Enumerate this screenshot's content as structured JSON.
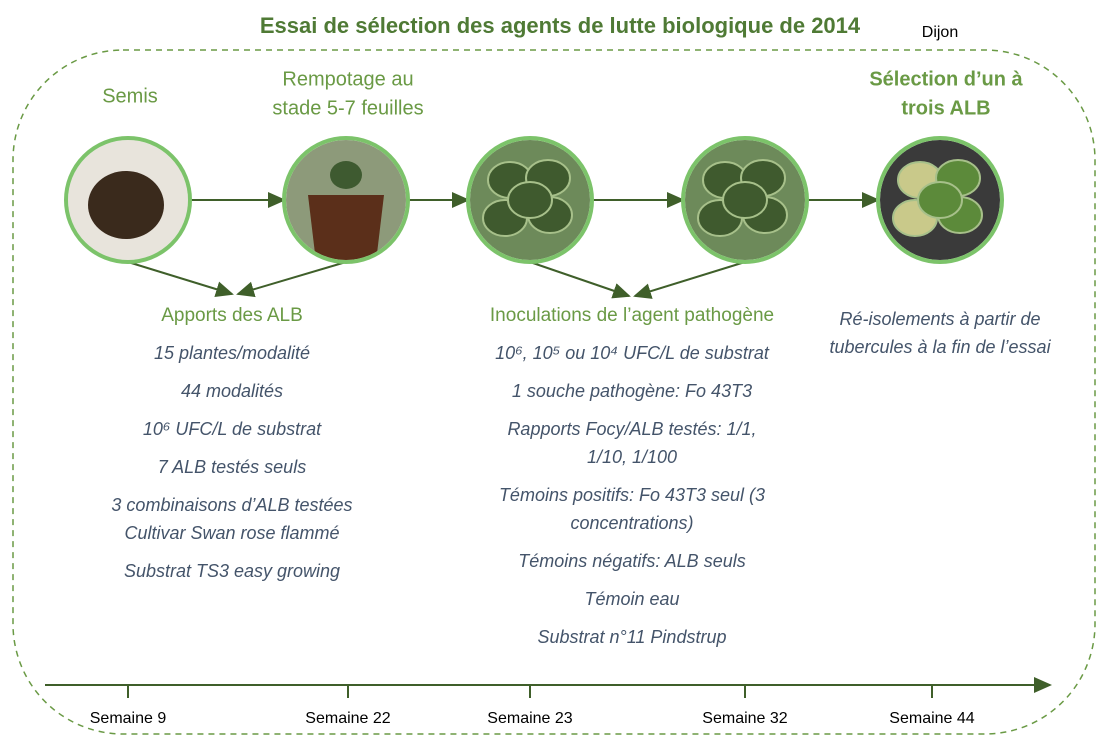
{
  "title": "Essai de sélection des agents de lutte biologique de 2014",
  "location": "Dijon",
  "stages": [
    {
      "lines": [
        "Semis"
      ]
    },
    {
      "lines": [
        "Rempotage au",
        "stade 5-7 feuilles"
      ]
    },
    {
      "lines": []
    },
    {
      "lines": []
    },
    {
      "lines": [
        "Sélection d’un à",
        "trois ALB"
      ]
    }
  ],
  "groups": [
    {
      "heading": "Apports des ALB",
      "items": [
        [
          "15 plantes/modalité"
        ],
        [
          "44 modalités"
        ],
        [
          "10⁶ UFC/L de substrat"
        ],
        [
          "7 ALB testés seuls"
        ],
        [
          "3 combinaisons d’ALB testées",
          "Cultivar Swan rose flammé"
        ],
        [
          "Substrat TS3 easy growing"
        ]
      ]
    },
    {
      "heading": "Inoculations de l’agent pathogène",
      "items": [
        [
          "10⁶, 10⁵ ou 10⁴ UFC/L de substrat"
        ],
        [
          "1 souche pathogène: Fo 43T3"
        ],
        [
          "Rapports Focy/ALB testés: 1/1,",
          "1/10, 1/100"
        ],
        [
          "Témoins positifs: Fo 43T3 seul (3",
          "concentrations)"
        ],
        [
          "Témoins négatifs: ALB seuls"
        ],
        [
          "Témoin eau"
        ],
        [
          "Substrat n°11 Pindstrup"
        ]
      ]
    },
    {
      "heading": null,
      "items": [
        [
          "Ré-isolements à partir de",
          "tubercules à la fin de l’essai"
        ]
      ]
    }
  ],
  "timeline": [
    "Semaine 9",
    "Semaine 22",
    "Semaine 23",
    "Semaine 32",
    "Semaine 44"
  ]
}
